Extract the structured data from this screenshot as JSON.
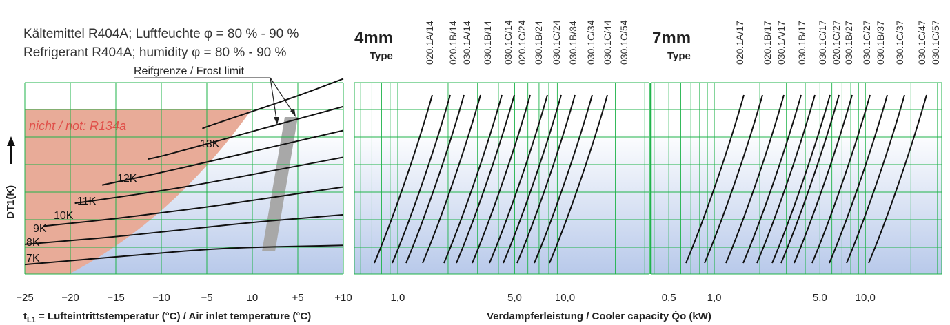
{
  "colors": {
    "grid": "#1fb34a",
    "region_fill": "#e8ab98",
    "region_text": "#e0504a",
    "band": "#a8a8a8",
    "curve": "#111111",
    "bg_top": "#ffffff",
    "bg_bottom": "#b8c9ea"
  },
  "header": {
    "line1": "Kältemittel R404A; Luftfeuchte φ = 80 % - 90 %",
    "line2": "Refrigerant R404A; humidity φ = 80 % - 90 %"
  },
  "groups": [
    {
      "size_label": "4mm",
      "type_label": "Type",
      "models": [
        "020.1A/14",
        "020.1B/14",
        "030.1A/14",
        "030.1B/14",
        "030.1C/14",
        "020.1C/24",
        "030.1B/24",
        "030.1C/24",
        "030.1B/34",
        "030.1C/34",
        "030.1C/44",
        "030.1C/54"
      ]
    },
    {
      "size_label": "7mm",
      "type_label": "Type",
      "models": [
        "020.1A/17",
        "020.1B/17",
        "030.1A/17",
        "030.1B/17",
        "030.1C/17",
        "020.1C/27",
        "030.1B/27",
        "030.1C/27",
        "030.1B/37",
        "030.1C/37",
        "030.1C/47",
        "030.1C/57"
      ]
    }
  ],
  "chart_data": [
    {
      "type": "line",
      "title": "",
      "xlabel": "tL1 = Lufteintrittstemperatur (°C) / Air inlet temperature (°C)",
      "ylabel": "DT1(K)",
      "x_ticks": [
        "−25",
        "−20",
        "−15",
        "−10",
        "−5",
        "±0",
        "+5",
        "+10"
      ],
      "xlim": [
        -25,
        10
      ],
      "grid": true,
      "annotations": {
        "region": "nicht / not: R134a",
        "frost_limit": "Reifgrenze / Frost limit"
      },
      "series": [
        {
          "name": "7K",
          "x": [
            -25,
            -20,
            -15,
            -10,
            -5,
            0,
            5,
            10
          ],
          "y": [
            0.05,
            0.07,
            0.09,
            0.11,
            0.13,
            0.14,
            0.145,
            0.15
          ]
        },
        {
          "name": "8K",
          "x": [
            -25,
            -20,
            -15,
            -10,
            -5,
            0,
            5,
            10
          ],
          "y": [
            0.155,
            0.175,
            0.195,
            0.22,
            0.245,
            0.27,
            0.29,
            0.31
          ]
        },
        {
          "name": "9K",
          "x": [
            -23,
            -20,
            -15,
            -10,
            -5,
            0,
            5,
            10
          ],
          "y": [
            0.25,
            0.265,
            0.29,
            0.32,
            0.35,
            0.385,
            0.42,
            0.455
          ]
        },
        {
          "name": "10K",
          "x": [
            -19.5,
            -15,
            -10,
            -5,
            0,
            5,
            10
          ],
          "y": [
            0.37,
            0.4,
            0.435,
            0.475,
            0.52,
            0.565,
            0.61
          ]
        },
        {
          "name": "11K",
          "x": [
            -16.5,
            -15,
            -10,
            -5,
            0,
            5,
            10
          ],
          "y": [
            0.465,
            0.48,
            0.53,
            0.585,
            0.64,
            0.695,
            0.75
          ]
        },
        {
          "name": "12K",
          "x": [
            -11.5,
            -10,
            -5,
            0,
            5,
            10
          ],
          "y": [
            0.6,
            0.615,
            0.68,
            0.745,
            0.81,
            0.875
          ]
        },
        {
          "name": "13K",
          "x": [
            -5.5,
            -5,
            0,
            5,
            10
          ],
          "y": [
            0.76,
            0.77,
            0.85,
            0.93,
            1.02
          ]
        }
      ]
    },
    {
      "type": "line",
      "xlabel": "Verdampferleistung / Cooler capacity  Q̇o (kW)",
      "x_scale": "log",
      "x_ticks": [
        "1,0",
        "5,0",
        "10,0"
      ],
      "grid": true,
      "panels": [
        {
          "name": "4mm",
          "curves": 12,
          "x_range": [
            0.7,
            30
          ]
        },
        {
          "name": "7mm",
          "curves": 12,
          "x_range": [
            0.4,
            30
          ],
          "x_ticks": [
            "0,5",
            "1,0",
            "5,0",
            "10,0"
          ]
        }
      ]
    }
  ]
}
